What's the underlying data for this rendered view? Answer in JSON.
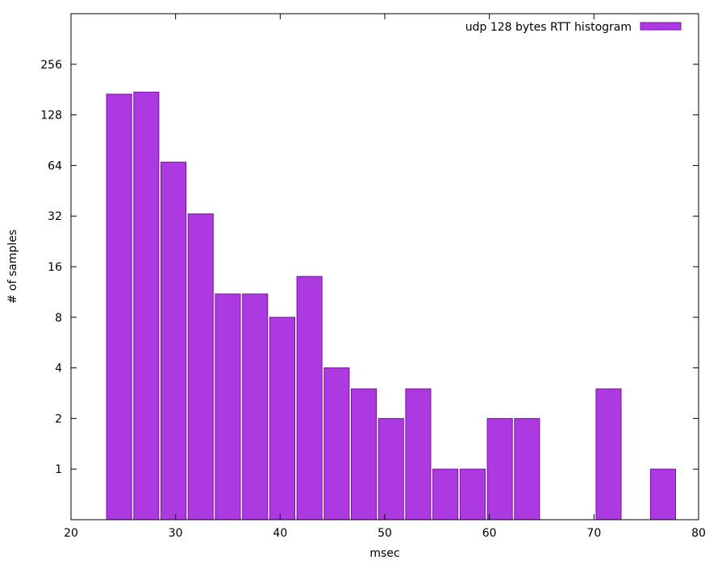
{
  "chart_data": {
    "type": "bar",
    "title": "",
    "xlabel": "msec",
    "ylabel": "# of samples",
    "xlim": [
      20,
      80
    ],
    "x_ticks": [
      20,
      30,
      40,
      50,
      60,
      70,
      80
    ],
    "y_scale": "log2",
    "ylim": [
      0.5,
      512
    ],
    "y_ticks": [
      1,
      2,
      4,
      8,
      16,
      32,
      64,
      128,
      256
    ],
    "bar_width": 2.4,
    "legend": {
      "label": "udp 128 bytes RTT histogram",
      "placement": "top-right"
    },
    "grid": false,
    "series": [
      {
        "name": "udp 128 bytes RTT histogram",
        "color": "#ad3ae0",
        "edge_color": "#7a10a8",
        "x": [
          24.6,
          27.2,
          29.8,
          32.4,
          35.0,
          37.6,
          40.2,
          42.8,
          45.4,
          48.0,
          50.6,
          53.2,
          55.8,
          58.4,
          61.0,
          63.6,
          71.4,
          76.6
        ],
        "values": [
          170,
          175,
          67,
          33,
          11,
          11,
          8,
          14,
          4,
          3,
          2,
          3,
          1,
          1,
          2,
          2,
          3,
          1
        ]
      }
    ]
  }
}
